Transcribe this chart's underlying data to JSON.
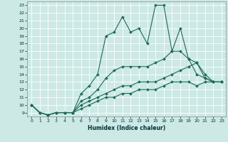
{
  "xlabel": "Humidex (Indice chaleur)",
  "ylabel": "",
  "xlim": [
    -0.5,
    23.5
  ],
  "ylim": [
    8.5,
    23.5
  ],
  "xticks": [
    0,
    1,
    2,
    3,
    4,
    5,
    6,
    7,
    8,
    9,
    10,
    11,
    12,
    13,
    14,
    15,
    16,
    17,
    18,
    19,
    20,
    21,
    22,
    23
  ],
  "yticks": [
    9,
    10,
    11,
    12,
    13,
    14,
    15,
    16,
    17,
    18,
    19,
    20,
    21,
    22,
    23
  ],
  "bg_color": "#cce9e5",
  "line_color": "#1a6b5a",
  "grid_color": "#ffffff",
  "lines": [
    {
      "x": [
        0,
        1,
        2,
        3,
        4,
        5,
        6,
        7,
        8,
        9,
        10,
        11,
        12,
        13,
        14,
        15,
        16,
        17,
        18,
        19,
        20,
        21,
        22,
        23
      ],
      "y": [
        10,
        9,
        8.7,
        9,
        9,
        9,
        11.5,
        12.5,
        14,
        19,
        19.5,
        21.5,
        19.5,
        20,
        18,
        23,
        23,
        17,
        20,
        16,
        15.5,
        13.5,
        13,
        13
      ]
    },
    {
      "x": [
        0,
        1,
        2,
        3,
        4,
        5,
        6,
        7,
        8,
        9,
        10,
        11,
        12,
        13,
        14,
        15,
        16,
        17,
        18,
        19,
        20,
        21,
        22,
        23
      ],
      "y": [
        10,
        9,
        8.7,
        9,
        9,
        9,
        10.5,
        11,
        12,
        13.5,
        14.5,
        15,
        15,
        15,
        15,
        15.5,
        16,
        17,
        17,
        16,
        14,
        13.5,
        13,
        13
      ]
    },
    {
      "x": [
        0,
        1,
        2,
        3,
        4,
        5,
        6,
        7,
        8,
        9,
        10,
        11,
        12,
        13,
        14,
        15,
        16,
        17,
        18,
        19,
        20,
        21,
        22,
        23
      ],
      "y": [
        10,
        9,
        8.7,
        9,
        9,
        9,
        10,
        10.5,
        11,
        11.5,
        12,
        12.5,
        12.5,
        13,
        13,
        13,
        13.5,
        14,
        14.5,
        15,
        15.5,
        14,
        13,
        13
      ]
    },
    {
      "x": [
        0,
        1,
        2,
        3,
        4,
        5,
        6,
        7,
        8,
        9,
        10,
        11,
        12,
        13,
        14,
        15,
        16,
        17,
        18,
        19,
        20,
        21,
        22,
        23
      ],
      "y": [
        10,
        9,
        8.7,
        9,
        9,
        9,
        9.5,
        10,
        10.5,
        11,
        11,
        11.5,
        11.5,
        12,
        12,
        12,
        12.5,
        13,
        13,
        13,
        12.5,
        13,
        13,
        13
      ]
    }
  ]
}
